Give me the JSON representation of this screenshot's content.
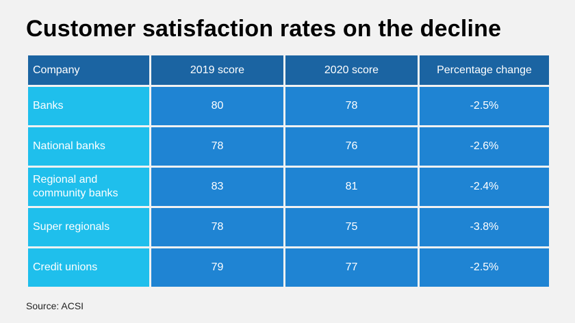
{
  "title": "Customer satisfaction rates on the decline",
  "source": "Source: ACSI",
  "colors": {
    "background": "#f2f2f2",
    "header": "#1b64a2",
    "first_column": "#1fbfec",
    "cells": "#1f84d3",
    "text_light": "#ffffff"
  },
  "chart_data": {
    "type": "table",
    "title": "Customer satisfaction rates on the decline",
    "columns": [
      "Company",
      "2019 score",
      "2020 score",
      "Percentage change"
    ],
    "rows": [
      [
        "Banks",
        "80",
        "78",
        "-2.5%"
      ],
      [
        "National banks",
        "78",
        "76",
        "-2.6%"
      ],
      [
        "Regional and community banks",
        "83",
        "81",
        "-2.4%"
      ],
      [
        "Super regionals",
        "78",
        "75",
        "-3.8%"
      ],
      [
        "Credit unions",
        "79",
        "77",
        "-2.5%"
      ]
    ]
  }
}
